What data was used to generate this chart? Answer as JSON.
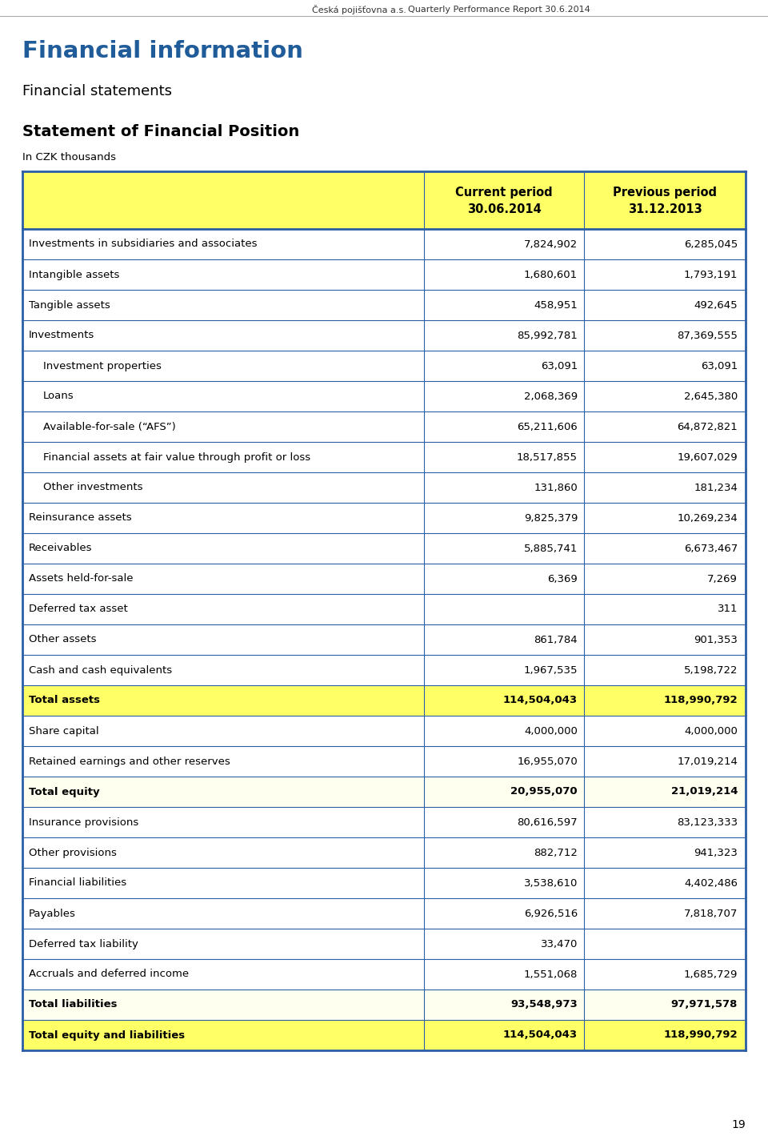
{
  "header_company": "Česká pojišťovna a.s.",
  "header_report": "Quarterly Performance Report 30.6.2014",
  "title_main": "Financial information",
  "title_sub1": "Financial statements",
  "title_sub2": "Statement of Financial Position",
  "subtitle_note": "In CZK thousands",
  "col_header1_line1": "Current period",
  "col_header1_line2": "30.06.2014",
  "col_header2_line1": "Previous period",
  "col_header2_line2": "31.12.2013",
  "rows": [
    {
      "label": "Investments in subsidiaries and associates",
      "val1": "7,824,902",
      "val2": "6,285,045",
      "indent": false,
      "bold": false,
      "highlight": "none"
    },
    {
      "label": "Intangible assets",
      "val1": "1,680,601",
      "val2": "1,793,191",
      "indent": false,
      "bold": false,
      "highlight": "none"
    },
    {
      "label": "Tangible assets",
      "val1": "458,951",
      "val2": "492,645",
      "indent": false,
      "bold": false,
      "highlight": "none"
    },
    {
      "label": "Investments",
      "val1": "85,992,781",
      "val2": "87,369,555",
      "indent": false,
      "bold": false,
      "highlight": "none"
    },
    {
      "label": "Investment properties",
      "val1": "63,091",
      "val2": "63,091",
      "indent": true,
      "bold": false,
      "highlight": "none"
    },
    {
      "label": "Loans",
      "val1": "2,068,369",
      "val2": "2,645,380",
      "indent": true,
      "bold": false,
      "highlight": "none"
    },
    {
      "label": "Available-for-sale (“AFS”)",
      "val1": "65,211,606",
      "val2": "64,872,821",
      "indent": true,
      "bold": false,
      "highlight": "none"
    },
    {
      "label": "Financial assets at fair value through profit or loss",
      "val1": "18,517,855",
      "val2": "19,607,029",
      "indent": true,
      "bold": false,
      "highlight": "none"
    },
    {
      "label": "Other investments",
      "val1": "131,860",
      "val2": "181,234",
      "indent": true,
      "bold": false,
      "highlight": "none"
    },
    {
      "label": "Reinsurance assets",
      "val1": "9,825,379",
      "val2": "10,269,234",
      "indent": false,
      "bold": false,
      "highlight": "none"
    },
    {
      "label": "Receivables",
      "val1": "5,885,741",
      "val2": "6,673,467",
      "indent": false,
      "bold": false,
      "highlight": "none"
    },
    {
      "label": "Assets held-for-sale",
      "val1": "6,369",
      "val2": "7,269",
      "indent": false,
      "bold": false,
      "highlight": "none"
    },
    {
      "label": "Deferred tax asset",
      "val1": "",
      "val2": "311",
      "indent": false,
      "bold": false,
      "highlight": "none"
    },
    {
      "label": "Other assets",
      "val1": "861,784",
      "val2": "901,353",
      "indent": false,
      "bold": false,
      "highlight": "none"
    },
    {
      "label": "Cash and cash equivalents",
      "val1": "1,967,535",
      "val2": "5,198,722",
      "indent": false,
      "bold": false,
      "highlight": "none"
    },
    {
      "label": "Total assets",
      "val1": "114,504,043",
      "val2": "118,990,792",
      "indent": false,
      "bold": true,
      "highlight": "yellow"
    },
    {
      "label": "Share capital",
      "val1": "4,000,000",
      "val2": "4,000,000",
      "indent": false,
      "bold": false,
      "highlight": "none"
    },
    {
      "label": "Retained earnings and other reserves",
      "val1": "16,955,070",
      "val2": "17,019,214",
      "indent": false,
      "bold": false,
      "highlight": "none"
    },
    {
      "label": "Total equity",
      "val1": "20,955,070",
      "val2": "21,019,214",
      "indent": false,
      "bold": true,
      "highlight": "lightyellow"
    },
    {
      "label": "Insurance provisions",
      "val1": "80,616,597",
      "val2": "83,123,333",
      "indent": false,
      "bold": false,
      "highlight": "none"
    },
    {
      "label": "Other provisions",
      "val1": "882,712",
      "val2": "941,323",
      "indent": false,
      "bold": false,
      "highlight": "none"
    },
    {
      "label": "Financial liabilities",
      "val1": "3,538,610",
      "val2": "4,402,486",
      "indent": false,
      "bold": false,
      "highlight": "none"
    },
    {
      "label": "Payables",
      "val1": "6,926,516",
      "val2": "7,818,707",
      "indent": false,
      "bold": false,
      "highlight": "none"
    },
    {
      "label": "Deferred tax liability",
      "val1": "33,470",
      "val2": "",
      "indent": false,
      "bold": false,
      "highlight": "none"
    },
    {
      "label": "Accruals and deferred income",
      "val1": "1,551,068",
      "val2": "1,685,729",
      "indent": false,
      "bold": false,
      "highlight": "none"
    },
    {
      "label": "Total liabilities",
      "val1": "93,548,973",
      "val2": "97,971,578",
      "indent": false,
      "bold": true,
      "highlight": "lightyellow"
    },
    {
      "label": "Total equity and liabilities",
      "val1": "114,504,043",
      "val2": "118,990,792",
      "indent": false,
      "bold": true,
      "highlight": "yellow"
    }
  ],
  "page_number": "19",
  "border_color": "#2B5EA7",
  "title_color": "#1F5C99",
  "yellow_bg": "#FFFF66",
  "lightyellow_bg": "#FFFFF0",
  "white_bg": "#FFFFFF"
}
